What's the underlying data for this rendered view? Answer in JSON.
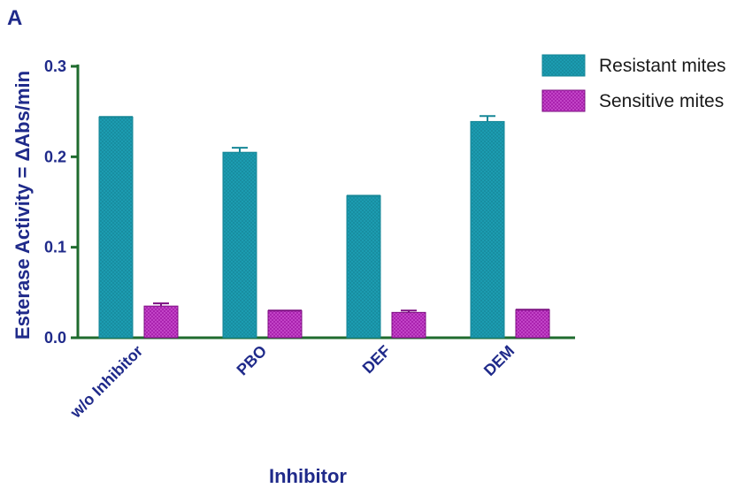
{
  "panel_label": "A",
  "colors": {
    "resistant": "#1d9fb5",
    "sensitive": "#a31aa8",
    "axis": "#1f6b2e",
    "text": "#1f2a8a",
    "errorbar": "#0c5f6e"
  },
  "chart_data": {
    "type": "bar",
    "ylabel": "Esterase Activity = ΔAbs/min",
    "xlabel": "Inhibitor",
    "categories": [
      "w/o Inhibitor",
      "PBO",
      "DEF",
      "DEM"
    ],
    "ylim": [
      0,
      0.3
    ],
    "yticks": [
      0.0,
      0.1,
      0.2,
      0.3
    ],
    "ytick_labels": [
      "0.0",
      "0.1",
      "0.2",
      "0.3"
    ],
    "grid": false,
    "legend_position": "top-right",
    "series": [
      {
        "name": "Resistant mites",
        "values": [
          0.244,
          0.205,
          0.157,
          0.239
        ],
        "errors": [
          0.0,
          0.005,
          0.0,
          0.006
        ]
      },
      {
        "name": "Sensitive mites",
        "values": [
          0.035,
          0.03,
          0.028,
          0.031
        ],
        "errors": [
          0.003,
          0.0,
          0.002,
          0.0
        ]
      }
    ]
  }
}
